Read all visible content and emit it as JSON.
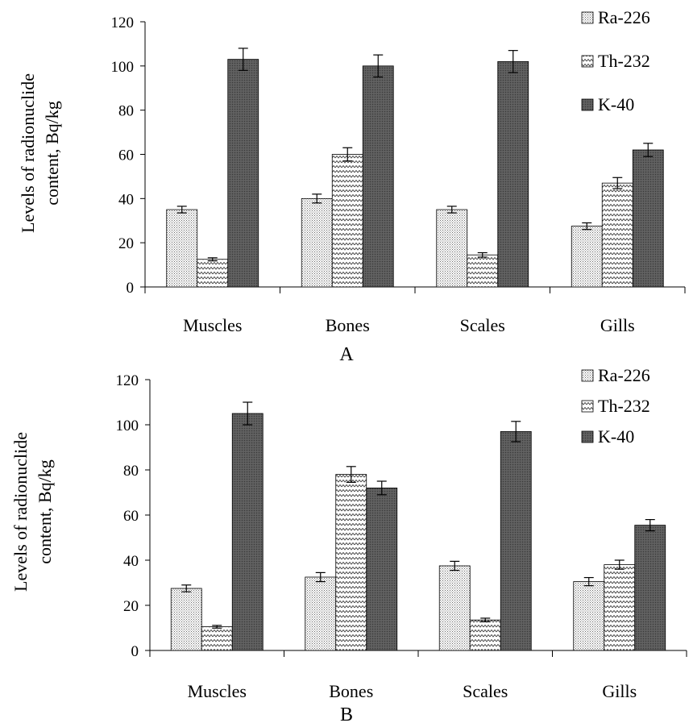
{
  "colors": {
    "k40": "#555555",
    "axis": "#000000"
  },
  "chart_data": [
    {
      "type": "bar",
      "panel_label": "A",
      "ylabel_lines": [
        "Levels of radionuclide",
        "content, Bq/kg"
      ],
      "ylim": [
        0,
        120
      ],
      "yticks": [
        0,
        20,
        40,
        60,
        80,
        100,
        120
      ],
      "categories": [
        "Muscles",
        "Bones",
        "Scales",
        "Gills"
      ],
      "series": [
        {
          "name": "Ra-226",
          "pattern": "dots",
          "values": [
            35,
            40,
            35,
            27.5
          ],
          "errors": [
            1.5,
            2,
            1.5,
            1.5
          ]
        },
        {
          "name": "Th-232",
          "pattern": "zigzag",
          "values": [
            12.5,
            60,
            14.5,
            47
          ],
          "errors": [
            0.7,
            3,
            1,
            2.5
          ]
        },
        {
          "name": "K-40",
          "pattern": "solid",
          "values": [
            103,
            100,
            102,
            62
          ],
          "errors": [
            5,
            5,
            5,
            3
          ]
        }
      ],
      "legend_position": "top-right",
      "grid": false
    },
    {
      "type": "bar",
      "panel_label": "B",
      "ylabel_lines": [
        "Levels of radionuclide",
        "content, Bq/kg"
      ],
      "ylim": [
        0,
        120
      ],
      "yticks": [
        0,
        20,
        40,
        60,
        80,
        100,
        120
      ],
      "categories": [
        "Muscles",
        "Bones",
        "Scales",
        "Gills"
      ],
      "series": [
        {
          "name": "Ra-226",
          "pattern": "dots",
          "values": [
            27.5,
            32.5,
            37.5,
            30.5
          ],
          "errors": [
            1.5,
            2,
            2,
            1.8
          ]
        },
        {
          "name": "Th-232",
          "pattern": "zigzag",
          "values": [
            10.5,
            78,
            13.5,
            38
          ],
          "errors": [
            0.6,
            3.5,
            0.8,
            2
          ]
        },
        {
          "name": "K-40",
          "pattern": "solid",
          "values": [
            105,
            72,
            97,
            55.5
          ],
          "errors": [
            5,
            3,
            4.5,
            2.5
          ]
        }
      ],
      "legend_position": "top-right",
      "grid": false
    }
  ]
}
